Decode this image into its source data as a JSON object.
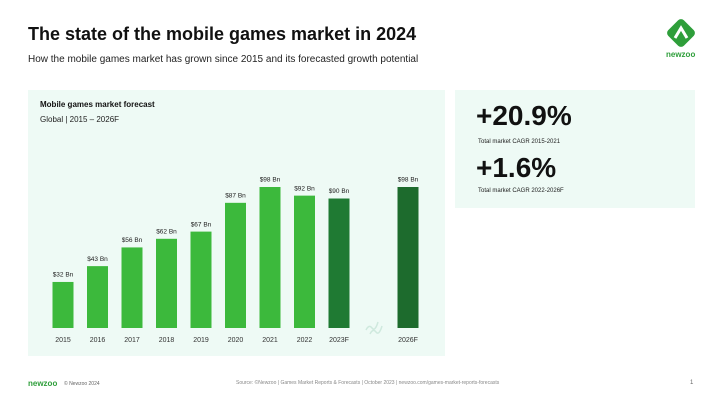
{
  "header": {
    "title": "The state of the mobile games market in 2024",
    "subtitle": "How the mobile games market has grown since 2015 and its forecasted growth potential",
    "logo": "newzoo"
  },
  "chart_data": {
    "type": "bar",
    "title": "Mobile games market forecast",
    "subtitle": "Global | 2015 – 2026F",
    "categories": [
      "2015",
      "2016",
      "2017",
      "2018",
      "2019",
      "2020",
      "2021",
      "2022",
      "2023F",
      "2026F"
    ],
    "values": [
      32,
      43,
      56,
      62,
      67,
      87,
      98,
      92,
      90,
      98
    ],
    "value_labels": [
      "$32 Bn",
      "$43 Bn",
      "$56 Bn",
      "$62 Bn",
      "$67 Bn",
      "$87 Bn",
      "$98 Bn",
      "$92 Bn",
      "$90 Bn",
      "$98 Bn"
    ],
    "colors": [
      "#3cb93c",
      "#3cb93c",
      "#3cb93c",
      "#3cb93c",
      "#3cb93c",
      "#3cb93c",
      "#3cb93c",
      "#3cb93c",
      "#1f7a33",
      "#1d6b2d"
    ]
  },
  "kpis": [
    {
      "value": "+20.9%",
      "label": "Total market CAGR 2015-2021"
    },
    {
      "value": "+1.6%",
      "label": "Total market CAGR 2022-2026F"
    }
  ],
  "footer": {
    "brand": "newzoo",
    "copyright": "© Newzoo 2024",
    "source": "Source: ©Newzoo | Games Market Reports & Forecasts | October 2023 | newzoo.com/games-market-reports-forecasts",
    "page": "1"
  }
}
